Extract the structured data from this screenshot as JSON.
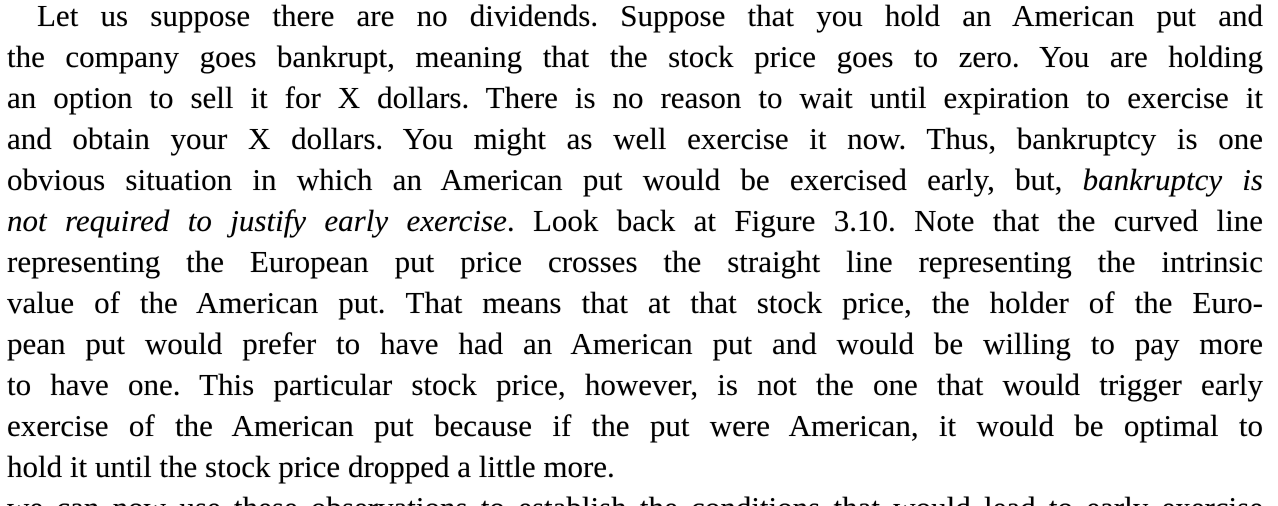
{
  "colors": {
    "highlight_fill": "#b9e8a9",
    "highlight_band": "#94dc80",
    "text": "#000000",
    "paper": "#ffffff"
  },
  "paragraph": {
    "lines": [
      {
        "segments": [
          {
            "t": "Let us suppose there are no dividends. Suppose that you hold an American put and"
          }
        ]
      },
      {
        "segments": [
          {
            "t": "the company goes bankrupt, meaning that the stock price goes to zero. You are holding"
          }
        ]
      },
      {
        "segments": [
          {
            "t": "an option to sell it for X dollars. There is no reason to wait until expiration to exercise it"
          }
        ]
      },
      {
        "segments": [
          {
            "t": "and obtain your X dollars. You might as well exercise it now. Thus, bankruptcy is one"
          }
        ]
      },
      {
        "segments": [
          {
            "t": "obvious situation in which an American put would be exercised early, but, "
          },
          {
            "t": "bankruptcy is"
          }
        ]
      },
      {
        "segments": [
          {
            "t": "not required to justify early exercise"
          },
          {
            "t": ". Look back at Figure 3.10. Note that the curved line"
          }
        ]
      },
      {
        "segments": [
          {
            "t": "representing the European put price crosses the straight line representing the intrinsic"
          }
        ]
      },
      {
        "segments": [
          {
            "t": "value of the American put. "
          },
          {
            "t": "That means that at that stock price, the holder of the Euro-"
          }
        ]
      },
      {
        "segments": [
          {
            "t": "pean put would prefer to have had an American put and would be willing to pay more"
          }
        ]
      },
      {
        "segments": [
          {
            "t": "to have one. This particular stock price, however, is not the one that would trigger early"
          }
        ]
      },
      {
        "segments": [
          {
            "t": "exercise of the American put because if the put were American, it would be optimal to"
          }
        ]
      },
      {
        "segments": [
          {
            "t": "hold it until the stock price dropped a little more."
          }
        ]
      },
      {
        "segments": [
          {
            "t": "we can now use these observations to establish the conditions that would lead to early exercise"
          }
        ]
      }
    ]
  }
}
